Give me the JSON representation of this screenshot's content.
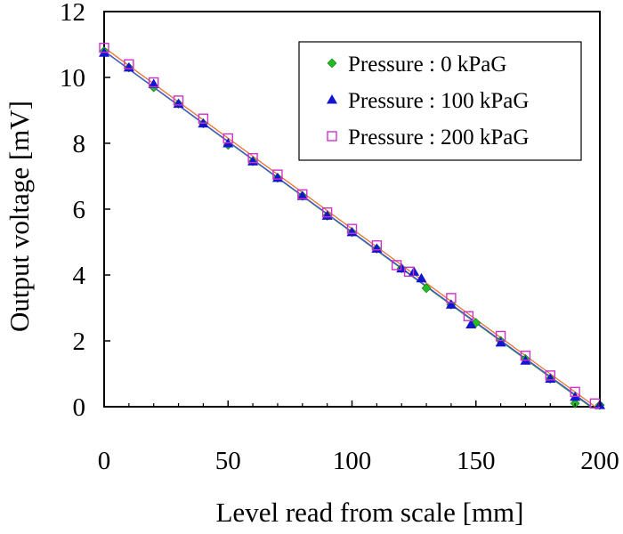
{
  "chart_data": {
    "type": "scatter",
    "xlabel": "Level read from scale [mm]",
    "ylabel": "Output voltage [mV]",
    "xlim": [
      0,
      200
    ],
    "ylim": [
      0,
      12
    ],
    "xticks": [
      0,
      50,
      100,
      150,
      200
    ],
    "yticks": [
      0,
      2,
      4,
      6,
      8,
      10,
      12
    ],
    "grid": false,
    "legend_position": "top-right",
    "series": [
      {
        "name": "Pressure : 0 kPaG",
        "marker": "diamond",
        "color": "#22bb22",
        "fit_color": "#2ca02c",
        "x": [
          0,
          10,
          20,
          30,
          40,
          50,
          60,
          70,
          80,
          90,
          100,
          110,
          120,
          130,
          140,
          150,
          160,
          170,
          180,
          190,
          200
        ],
        "y": [
          10.8,
          10.3,
          9.7,
          9.2,
          8.6,
          7.95,
          7.45,
          6.95,
          6.4,
          5.8,
          5.3,
          4.8,
          4.2,
          3.6,
          3.1,
          2.55,
          2.0,
          1.45,
          0.85,
          0.1,
          0.05
        ]
      },
      {
        "name": "Pressure : 100 kPaG",
        "marker": "triangle",
        "color": "#1515d0",
        "fit_color": "#4a4ae0",
        "x": [
          0,
          10,
          20,
          30,
          40,
          50,
          60,
          70,
          80,
          90,
          100,
          110,
          120,
          125,
          128,
          140,
          148,
          160,
          170,
          180,
          190,
          200
        ],
        "y": [
          10.75,
          10.3,
          9.8,
          9.2,
          8.6,
          8.0,
          7.45,
          6.95,
          6.4,
          5.8,
          5.3,
          4.8,
          4.2,
          4.1,
          3.9,
          3.1,
          2.5,
          1.95,
          1.4,
          0.85,
          0.3,
          0.05
        ]
      },
      {
        "name": "Pressure : 200 kPaG",
        "marker": "square",
        "color": "#cc33cc",
        "fit_color": "#e8742a",
        "x": [
          0,
          10,
          20,
          30,
          40,
          50,
          60,
          70,
          80,
          90,
          100,
          110,
          118,
          123,
          140,
          147,
          160,
          170,
          180,
          190,
          198
        ],
        "y": [
          10.9,
          10.4,
          9.85,
          9.3,
          8.75,
          8.15,
          7.55,
          7.05,
          6.45,
          5.9,
          5.4,
          4.9,
          4.3,
          4.1,
          3.3,
          2.75,
          2.15,
          1.55,
          0.95,
          0.45,
          0.1
        ]
      }
    ]
  }
}
